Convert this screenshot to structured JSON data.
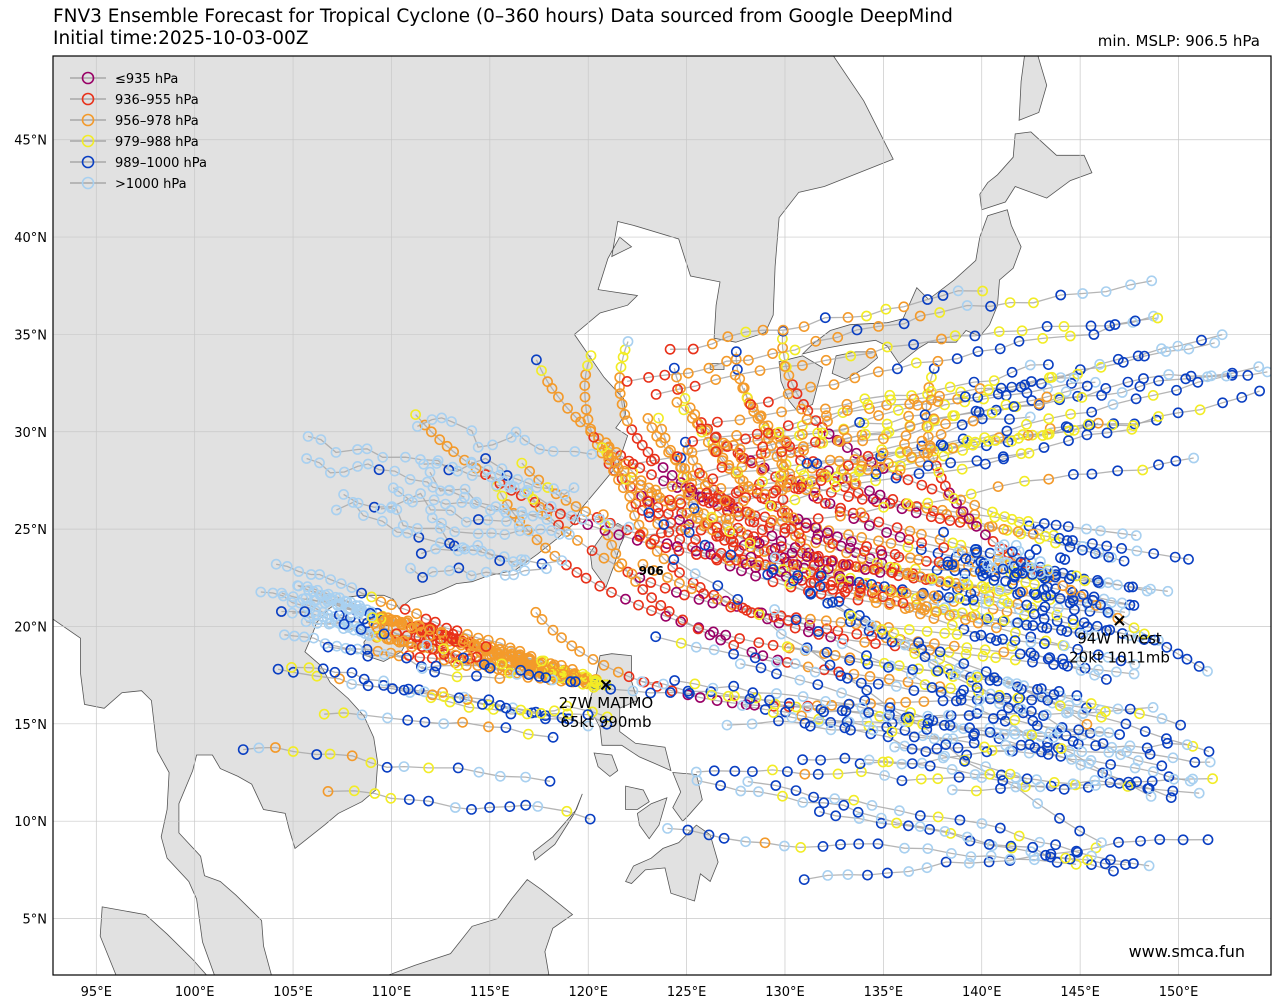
{
  "header": {
    "title_line1": "FNV3 Ensemble Forecast for Tropical Cyclone (0–360 hours) Data sourced from Google DeepMind",
    "title_line2": "Initial time:2025-10-03-00Z",
    "min_mslp": "min. MSLP: 906.5 hPa"
  },
  "map": {
    "lon_range": [
      92.8,
      154.7
    ],
    "lat_range": [
      2.1,
      49.3
    ],
    "lon_ticks": [
      "95°E",
      "100°E",
      "105°E",
      "110°E",
      "115°E",
      "120°E",
      "125°E",
      "130°E",
      "135°E",
      "140°E",
      "145°E",
      "150°E"
    ],
    "lat_ticks": [
      "5°N",
      "10°N",
      "15°N",
      "20°N",
      "25°N",
      "30°N",
      "35°N",
      "40°N",
      "45°N"
    ],
    "land_color": "#e1e1e1",
    "ocean_color": "#ffffff",
    "coast_color": "#555555",
    "track_color": "#a8a8a8"
  },
  "legend": [
    {
      "label": "≤935 hPa",
      "color": "#990066"
    },
    {
      "label": "936–955 hPa",
      "color": "#e8311a"
    },
    {
      "label": "956–978 hPa",
      "color": "#f39a2b"
    },
    {
      "label": "979–988 hPa",
      "color": "#f2ec26"
    },
    {
      "label": "989–1000 hPa",
      "color": "#0a3fc2"
    },
    {
      "label": ">1000 hPa",
      "color": "#a8d0f0"
    }
  ],
  "storms": [
    {
      "name": "27W MATMO",
      "detail": "65kt 990mb",
      "lon": 120.9,
      "lat": 17.0
    },
    {
      "name": "94W Invest",
      "detail": "20kt 1011mb",
      "lon": 147.0,
      "lat": 20.3
    }
  ],
  "min_marker": {
    "label": "906",
    "lon": 123.2,
    "lat": 22.9
  },
  "credit": "www.smca.fun"
}
